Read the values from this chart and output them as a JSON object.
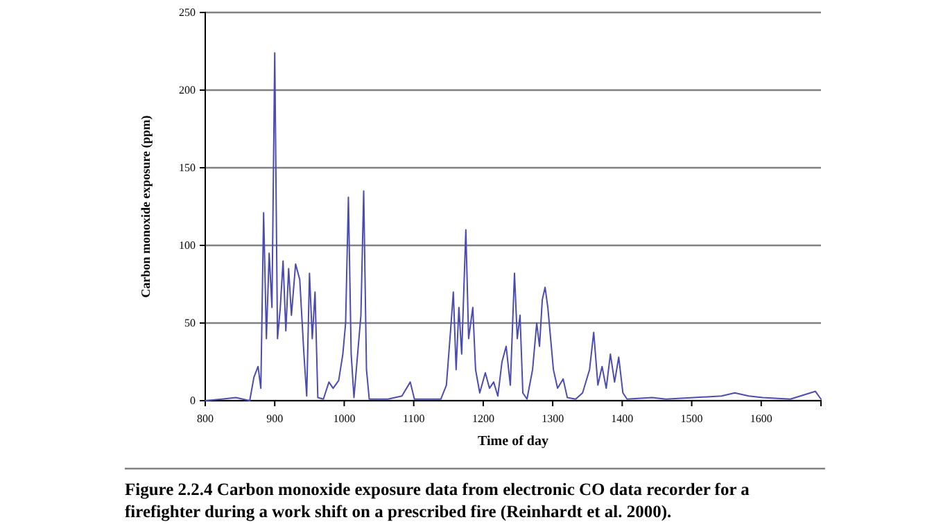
{
  "chart_data": {
    "type": "line",
    "xlabel": "Time of day",
    "ylabel": "Carbon monoxide exposure (ppm)",
    "annotations": [
      "Figure 2.2.4 Carbon monoxide exposure data from electronic CO data recorder for a firefighter during a work shift on a prescribed fire (Reinhardt et al. 2000)."
    ],
    "xlim": [
      800,
      1686
    ],
    "ylim": [
      0,
      250
    ],
    "xticks": [
      800,
      900,
      1000,
      1100,
      1200,
      1300,
      1400,
      1500,
      1600
    ],
    "yticks": [
      0,
      50,
      100,
      150,
      200,
      250
    ],
    "grid": "y",
    "marker": "none",
    "line_style": "solid",
    "series": [
      {
        "color": "#4b4bb0",
        "x": [
          800,
          824,
          844,
          864,
          870,
          876,
          880,
          884,
          888,
          892,
          896,
          900,
          904,
          908,
          912,
          916,
          920,
          924,
          930,
          936,
          942,
          946,
          950,
          954,
          958,
          962,
          970,
          978,
          984,
          992,
          998,
          1002,
          1006,
          1010,
          1014,
          1024,
          1028,
          1032,
          1036,
          1063,
          1083,
          1095,
          1101,
          1139,
          1147,
          1153,
          1157,
          1161,
          1165,
          1169,
          1175,
          1179,
          1185,
          1189,
          1195,
          1203,
          1209,
          1215,
          1221,
          1227,
          1233,
          1239,
          1245,
          1249,
          1253,
          1257,
          1263,
          1271,
          1277,
          1281,
          1285,
          1289,
          1293,
          1297,
          1301,
          1307,
          1315,
          1321,
          1333,
          1343,
          1353,
          1359,
          1365,
          1371,
          1377,
          1383,
          1389,
          1395,
          1401,
          1407,
          1443,
          1463,
          1503,
          1543,
          1562,
          1582,
          1602,
          1642,
          1678,
          1686
        ],
        "values": [
          0,
          1,
          2,
          0,
          15,
          22,
          8,
          121,
          40,
          95,
          60,
          224,
          40,
          60,
          90,
          45,
          85,
          55,
          88,
          78,
          30,
          3,
          82,
          40,
          70,
          2,
          1,
          12,
          8,
          13,
          30,
          50,
          131,
          30,
          2,
          55,
          135,
          20,
          1,
          1,
          3,
          12,
          1,
          1,
          10,
          45,
          70,
          20,
          60,
          30,
          110,
          40,
          60,
          20,
          5,
          18,
          8,
          12,
          3,
          25,
          35,
          10,
          82,
          40,
          55,
          5,
          1,
          20,
          50,
          35,
          65,
          73,
          60,
          40,
          20,
          8,
          14,
          2,
          1,
          5,
          20,
          44,
          10,
          22,
          8,
          30,
          12,
          28,
          5,
          1,
          2,
          1,
          2,
          3,
          5,
          3,
          2,
          1,
          6,
          1
        ]
      }
    ]
  }
}
